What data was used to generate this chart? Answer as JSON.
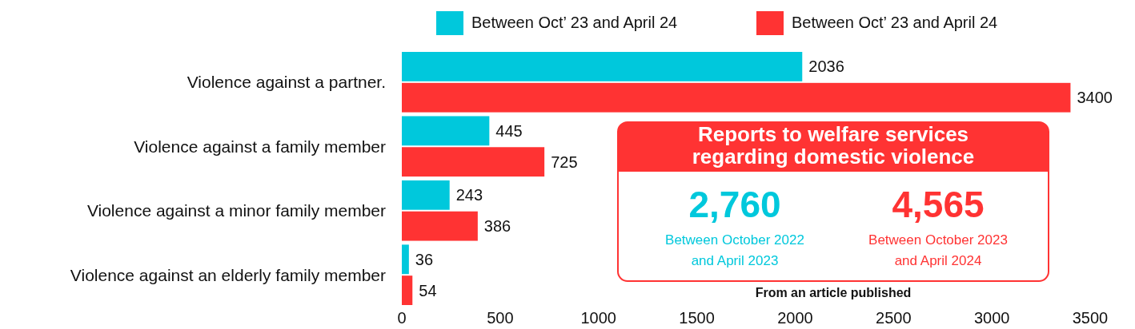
{
  "chart_data": {
    "type": "bar",
    "orientation": "horizontal",
    "categories": [
      "Violence against a partner.",
      "Violence against a family member",
      "Violence against a minor family member",
      "Violence against an elderly family member"
    ],
    "series": [
      {
        "name": "Between Oct’ 23 and April 24",
        "color": "#00c8dc",
        "values": [
          2036,
          445,
          243,
          36
        ]
      },
      {
        "name": "Between Oct’ 23 and April 24",
        "color": "#ff3333",
        "values": [
          3400,
          725,
          386,
          54
        ]
      }
    ],
    "xlim": [
      0,
      3500
    ],
    "xticks": [
      0,
      500,
      1000,
      1500,
      2000,
      2500,
      3000,
      3500
    ],
    "grid": false,
    "legend": "top",
    "data_labels": true,
    "annotations": [
      "Reports to welfare services regarding domestic violence",
      "2,760",
      "Between October 2022",
      "and April 2023",
      "4,565",
      "Between October 2023",
      "and April 2024",
      "From an article published"
    ]
  }
}
